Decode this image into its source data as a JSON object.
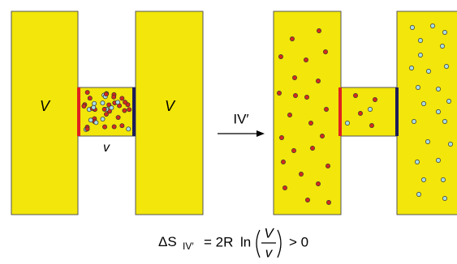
{
  "left": {
    "volume_left": "V",
    "volume_right": "V",
    "channel": "v"
  },
  "arrow": {
    "label": "IV′"
  },
  "formula": {
    "delta": "ΔS",
    "subscript": "IV′",
    "equals": "= 2R",
    "ln": "ln",
    "numerator": "V",
    "denominator": "v",
    "inequality": "> 0"
  }
}
